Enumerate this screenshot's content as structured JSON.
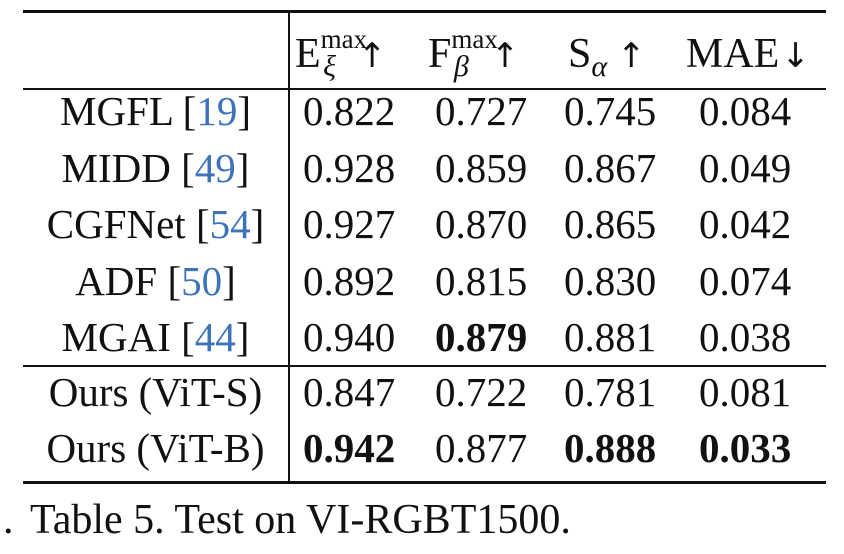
{
  "table": {
    "headers": [
      {
        "base": "E",
        "sup": "max",
        "sub": "ξ",
        "arrow": "↑"
      },
      {
        "base": "F",
        "sup": "max",
        "sub": "β",
        "arrow": "↑"
      },
      {
        "base": "S",
        "sup": "",
        "sub": "α",
        "arrow": "↑"
      },
      {
        "base": "MAE",
        "sup": "",
        "sub": "",
        "arrow": "↓"
      }
    ],
    "rows": [
      {
        "method": "MGFL",
        "ref": "19",
        "values": [
          "0.822",
          "0.727",
          "0.745",
          "0.084"
        ],
        "bold": [
          false,
          false,
          false,
          false
        ]
      },
      {
        "method": "MIDD",
        "ref": "49",
        "values": [
          "0.928",
          "0.859",
          "0.867",
          "0.049"
        ],
        "bold": [
          false,
          false,
          false,
          false
        ]
      },
      {
        "method": "CGFNet",
        "ref": "54",
        "values": [
          "0.927",
          "0.870",
          "0.865",
          "0.042"
        ],
        "bold": [
          false,
          false,
          false,
          false
        ]
      },
      {
        "method": "ADF",
        "ref": "50",
        "values": [
          "0.892",
          "0.815",
          "0.830",
          "0.074"
        ],
        "bold": [
          false,
          false,
          false,
          false
        ]
      },
      {
        "method": "MGAI",
        "ref": "44",
        "values": [
          "0.940",
          "0.879",
          "0.881",
          "0.038"
        ],
        "bold": [
          false,
          true,
          false,
          false
        ]
      },
      {
        "method": "Ours (ViT-S)",
        "ref": "",
        "values": [
          "0.847",
          "0.722",
          "0.781",
          "0.081"
        ],
        "bold": [
          false,
          false,
          false,
          false
        ]
      },
      {
        "method": "Ours (ViT-B)",
        "ref": "",
        "values": [
          "0.942",
          "0.877",
          "0.888",
          "0.033"
        ],
        "bold": [
          true,
          false,
          true,
          true
        ]
      }
    ]
  },
  "caption": {
    "bullet": ".",
    "text": "Table 5. Test on VI-RGBT1500."
  }
}
